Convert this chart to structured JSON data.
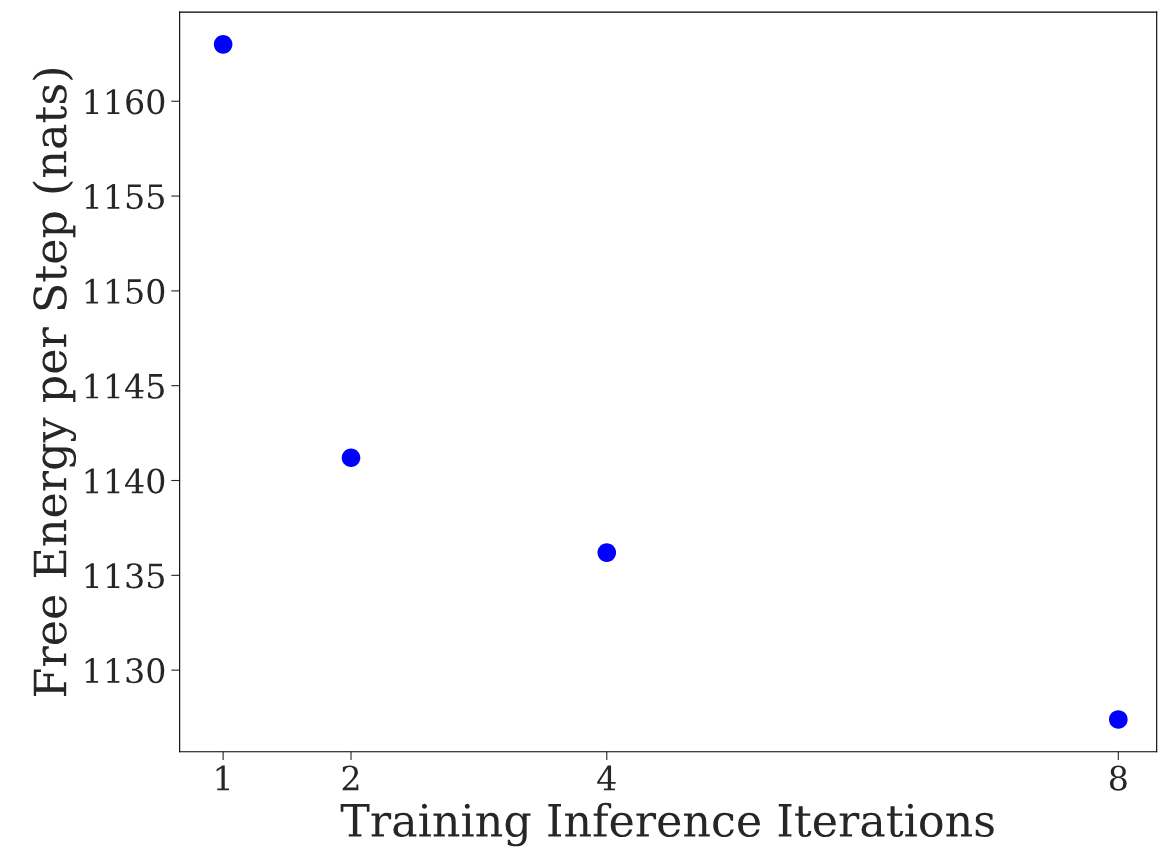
{
  "chart_data": {
    "type": "scatter",
    "xlabel": "Training Inference Iterations",
    "ylabel": "Free Energy per Step (nats)",
    "x": [
      1,
      2,
      4,
      8
    ],
    "series": [
      {
        "color": "#0000ff",
        "values": [
          1163.0,
          1141.2,
          1136.2,
          1127.4
        ]
      }
    ],
    "xlim": [
      0.66,
      8.3
    ],
    "xticks": [
      1,
      2,
      4,
      8
    ],
    "ylim": [
      1125.7,
      1164.7
    ],
    "yticks": [
      1130,
      1135,
      1140,
      1145,
      1150,
      1155,
      1160
    ],
    "marker": "circle",
    "grid": false,
    "legend": false
  }
}
